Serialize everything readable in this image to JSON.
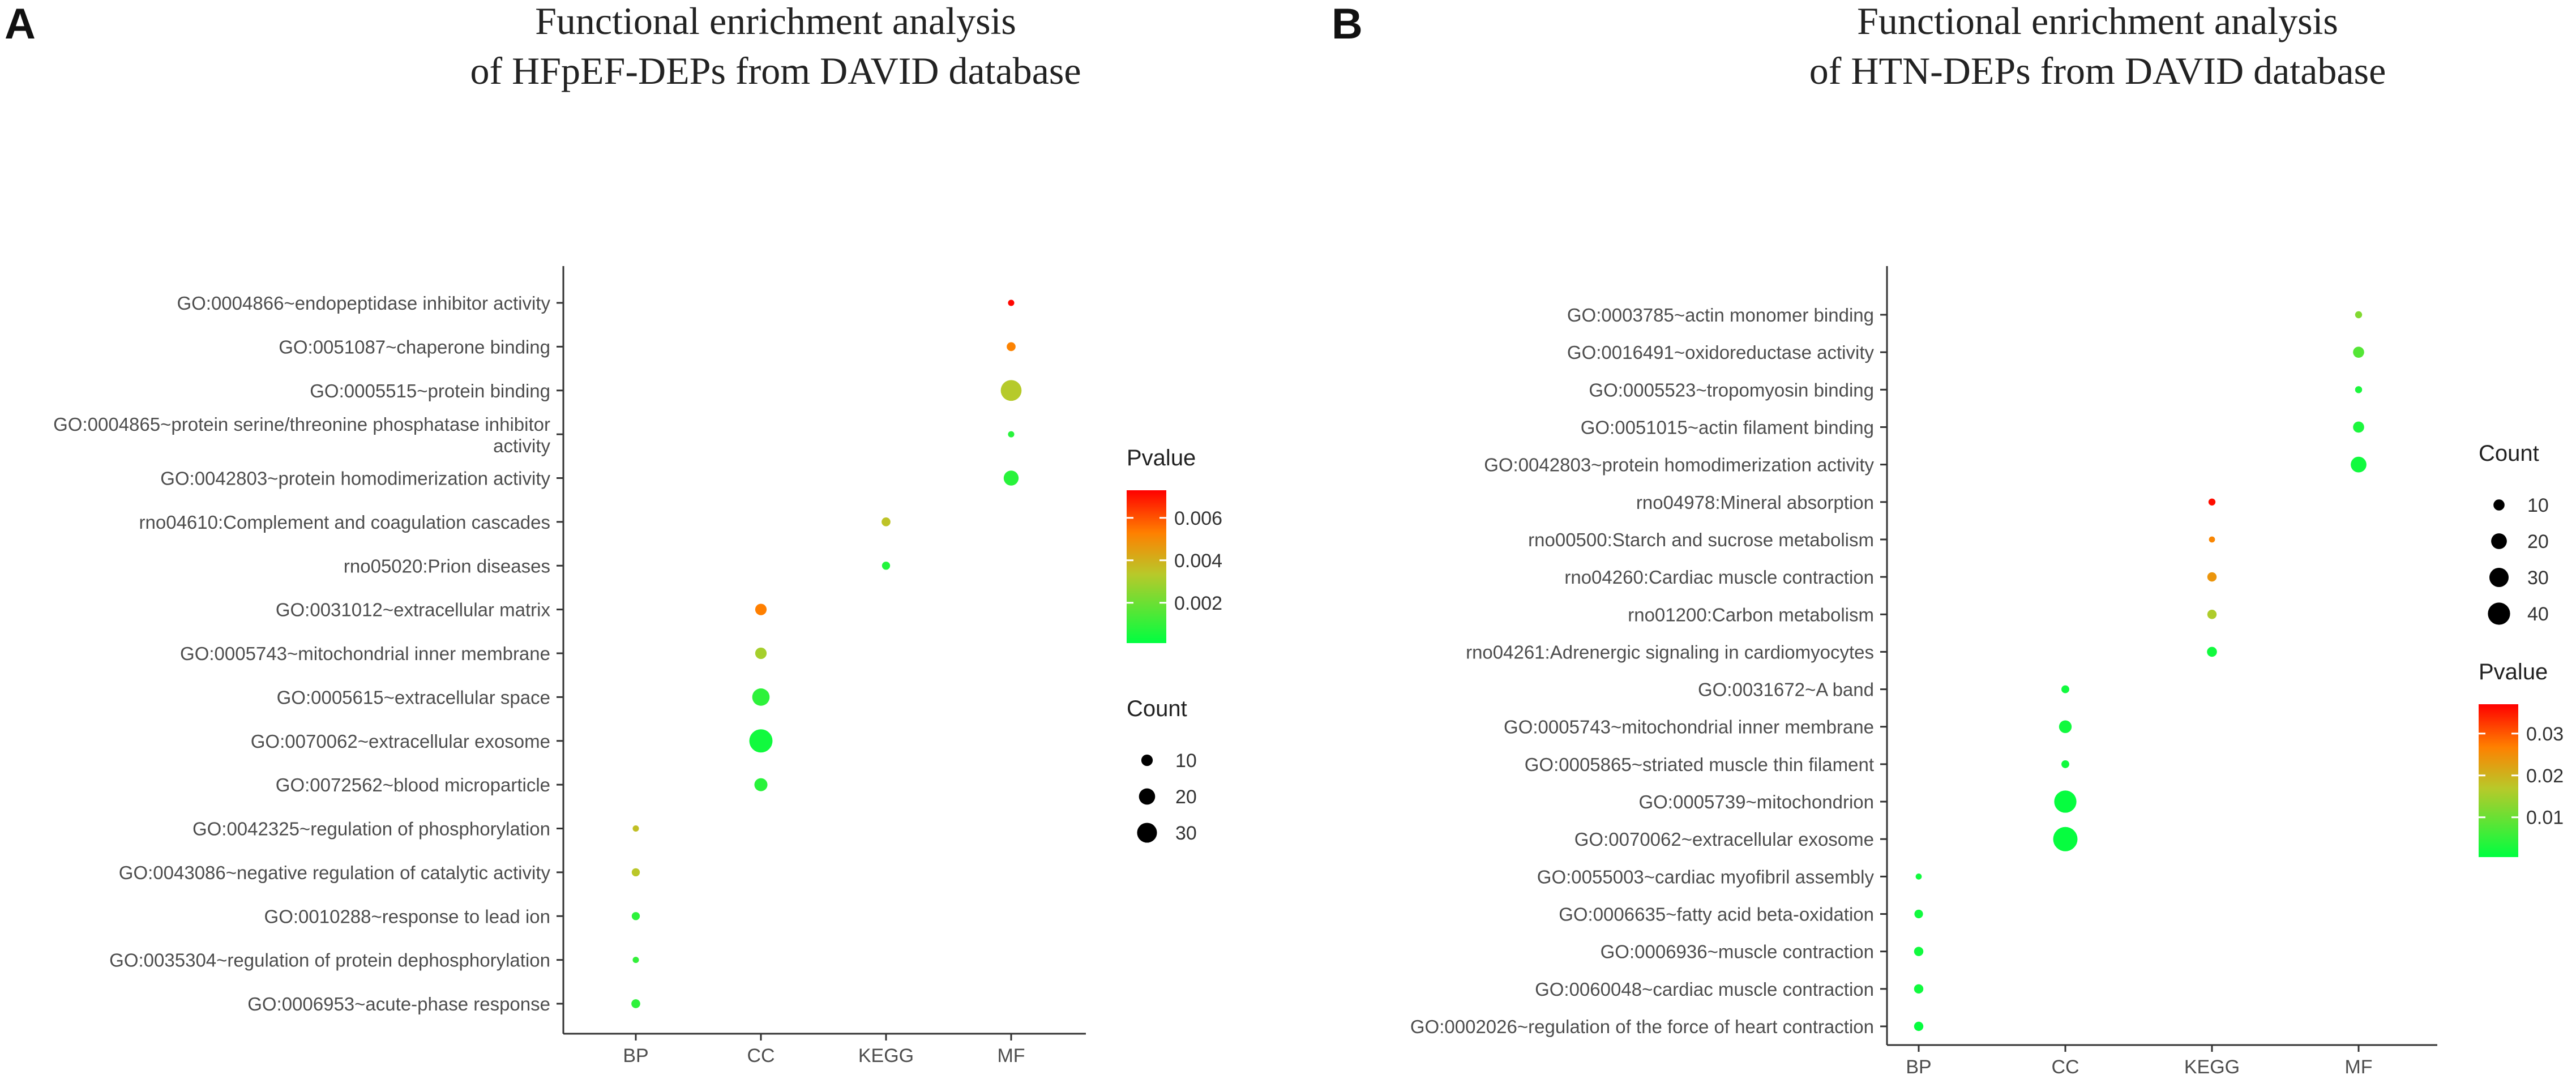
{
  "colors": {
    "low": "#00ff40",
    "mid": "#b8c92a",
    "midhigh": "#ff8000",
    "high": "#ff0000"
  },
  "chart_data": [
    {
      "type": "scatter",
      "panel_label": "A",
      "title": [
        "Functional enrichment analysis",
        "of HFpEF-DEPs from DAVID database"
      ],
      "categories": [
        "BP",
        "CC",
        "KEGG",
        "MF"
      ],
      "terms": [
        "GO:0004866~endopeptidase inhibitor activity",
        "GO:0051087~chaperone binding",
        "GO:0005515~protein binding",
        "GO:0004865~protein serine/threonine phosphatase inhibitor activity",
        "GO:0042803~protein homodimerization activity",
        "rno04610:Complement and coagulation cascades",
        "rno05020:Prion diseases",
        "GO:0031012~extracellular matrix",
        "GO:0005743~mitochondrial inner membrane",
        "GO:0005615~extracellular space",
        "GO:0070062~extracellular exosome",
        "GO:0072562~blood microparticle",
        "GO:0042325~regulation of phosphorylation",
        "GO:0043086~negative regulation of catalytic activity",
        "GO:0010288~response to lead ion",
        "GO:0035304~regulation of protein dephosphorylation",
        "GO:0006953~acute-phase response"
      ],
      "term_labels": [
        [
          "GO:0004866~endopeptidase inhibitor activity"
        ],
        [
          "GO:0051087~chaperone binding"
        ],
        [
          "GO:0005515~protein binding"
        ],
        [
          "GO:0004865~protein serine/threonine phosphatase inhibitor",
          "activity"
        ],
        [
          "GO:0042803~protein homodimerization activity"
        ],
        [
          "rno04610:Complement and coagulation cascades"
        ],
        [
          "rno05020:Prion diseases"
        ],
        [
          "GO:0031012~extracellular matrix"
        ],
        [
          "GO:0005743~mitochondrial inner membrane"
        ],
        [
          "GO:0005615~extracellular space"
        ],
        [
          "GO:0070062~extracellular exosome"
        ],
        [
          "GO:0072562~blood microparticle"
        ],
        [
          "GO:0042325~regulation of phosphorylation"
        ],
        [
          "GO:0043086~negative regulation of catalytic activity"
        ],
        [
          "GO:0010288~response to lead ion"
        ],
        [
          "GO:0035304~regulation of protein dephosphorylation"
        ],
        [
          "GO:0006953~acute-phase response"
        ]
      ],
      "points": [
        {
          "term": "GO:0004866~endopeptidase inhibitor activity",
          "category": "MF",
          "count": 3,
          "pvalue": 0.0072
        },
        {
          "term": "GO:0051087~chaperone binding",
          "category": "MF",
          "count": 6,
          "pvalue": 0.0052
        },
        {
          "term": "GO:0005515~protein binding",
          "category": "MF",
          "count": 33,
          "pvalue": 0.0033
        },
        {
          "term": "GO:0004865~protein serine/threonine phosphatase inhibitor activity",
          "category": "MF",
          "count": 3,
          "pvalue": 0.0008
        },
        {
          "term": "GO:0042803~protein homodimerization activity",
          "category": "MF",
          "count": 17,
          "pvalue": 0.0008
        },
        {
          "term": "rno04610:Complement and coagulation cascades",
          "category": "KEGG",
          "count": 6,
          "pvalue": 0.0035
        },
        {
          "term": "rno05020:Prion diseases",
          "category": "KEGG",
          "count": 5,
          "pvalue": 0.0007
        },
        {
          "term": "GO:0031012~extracellular matrix",
          "category": "CC",
          "count": 10,
          "pvalue": 0.0053
        },
        {
          "term": "GO:0005743~mitochondrial inner membrane",
          "category": "CC",
          "count": 10,
          "pvalue": 0.003
        },
        {
          "term": "GO:0005615~extracellular space",
          "category": "CC",
          "count": 23,
          "pvalue": 0.0009
        },
        {
          "term": "GO:0070062~extracellular exosome",
          "category": "CC",
          "count": 41,
          "pvalue": 0.0004
        },
        {
          "term": "GO:0072562~blood microparticle",
          "category": "CC",
          "count": 13,
          "pvalue": 0.0008
        },
        {
          "term": "GO:0042325~regulation of phosphorylation",
          "category": "BP",
          "count": 3,
          "pvalue": 0.0036
        },
        {
          "term": "GO:0043086~negative regulation of catalytic activity",
          "category": "BP",
          "count": 5,
          "pvalue": 0.0034
        },
        {
          "term": "GO:0010288~response to lead ion",
          "category": "BP",
          "count": 5,
          "pvalue": 0.0009
        },
        {
          "term": "GO:0035304~regulation of protein dephosphorylation",
          "category": "BP",
          "count": 3,
          "pvalue": 0.001
        },
        {
          "term": "GO:0006953~acute-phase response",
          "category": "BP",
          "count": 6,
          "pvalue": 0.0009
        }
      ],
      "pvalue_legend": {
        "title": "Pvalue",
        "range": [
          0.0001,
          0.0073
        ],
        "ticks": [
          0.002,
          0.004,
          0.006
        ],
        "tick_labels": [
          "0.002",
          "0.004",
          "0.006"
        ]
      },
      "count_legend": {
        "title": "Count",
        "values": [
          10,
          20,
          30
        ],
        "labels": [
          "10",
          "20",
          "30"
        ]
      },
      "legend_order": [
        "pvalue",
        "count"
      ]
    },
    {
      "type": "scatter",
      "panel_label": "B",
      "title": [
        "Functional enrichment analysis",
        "of HTN-DEPs from DAVID database"
      ],
      "categories": [
        "BP",
        "CC",
        "KEGG",
        "MF"
      ],
      "terms": [
        "GO:0003785~actin monomer binding",
        "GO:0016491~oxidoreductase activity",
        "GO:0005523~tropomyosin binding",
        "GO:0051015~actin filament binding",
        "GO:0042803~protein homodimerization activity",
        "rno04978:Mineral absorption",
        "rno00500:Starch and sucrose metabolism",
        "rno04260:Cardiac muscle contraction",
        "rno01200:Carbon metabolism",
        "rno04261:Adrenergic signaling in cardiomyocytes",
        "GO:0031672~A band",
        "GO:0005743~mitochondrial inner membrane",
        "GO:0005865~striated muscle thin filament",
        "GO:0005739~mitochondrion",
        "GO:0070062~extracellular exosome",
        "GO:0055003~cardiac myofibril assembly",
        "GO:0006635~fatty acid beta-oxidation",
        "GO:0006936~muscle contraction",
        "GO:0060048~cardiac muscle contraction",
        "GO:0002026~regulation of the force of heart contraction"
      ],
      "term_labels": [
        [
          "GO:0003785~actin monomer binding"
        ],
        [
          "GO:0016491~oxidoreductase activity"
        ],
        [
          "GO:0005523~tropomyosin binding"
        ],
        [
          "GO:0051015~actin filament binding"
        ],
        [
          "GO:0042803~protein homodimerization activity"
        ],
        [
          "rno04978:Mineral absorption"
        ],
        [
          "rno00500:Starch and sucrose metabolism"
        ],
        [
          "rno04260:Cardiac muscle contraction"
        ],
        [
          "rno01200:Carbon metabolism"
        ],
        [
          "rno04261:Adrenergic signaling in cardiomyocytes"
        ],
        [
          "GO:0031672~A band"
        ],
        [
          "GO:0005743~mitochondrial inner membrane"
        ],
        [
          "GO:0005865~striated muscle thin filament"
        ],
        [
          "GO:0005739~mitochondrion"
        ],
        [
          "GO:0070062~extracellular exosome"
        ],
        [
          "GO:0055003~cardiac myofibril assembly"
        ],
        [
          "GO:0006635~fatty acid beta-oxidation"
        ],
        [
          "GO:0006936~muscle contraction"
        ],
        [
          "GO:0060048~cardiac muscle contraction"
        ],
        [
          "GO:0002026~regulation of the force of heart contraction"
        ]
      ],
      "points": [
        {
          "term": "GO:0003785~actin monomer binding",
          "category": "MF",
          "count": 4,
          "pvalue": 0.012
        },
        {
          "term": "GO:0016491~oxidoreductase activity",
          "category": "MF",
          "count": 10,
          "pvalue": 0.008
        },
        {
          "term": "GO:0005523~tropomyosin binding",
          "category": "MF",
          "count": 4,
          "pvalue": 0.003
        },
        {
          "term": "GO:0051015~actin filament binding",
          "category": "MF",
          "count": 10,
          "pvalue": 0.003
        },
        {
          "term": "GO:0042803~protein homodimerization activity",
          "category": "MF",
          "count": 20,
          "pvalue": 0.002
        },
        {
          "term": "rno04978:Mineral absorption",
          "category": "KEGG",
          "count": 4,
          "pvalue": 0.036
        },
        {
          "term": "rno00500:Starch and sucrose metabolism",
          "category": "KEGG",
          "count": 3,
          "pvalue": 0.026
        },
        {
          "term": "rno04260:Cardiac muscle contraction",
          "category": "KEGG",
          "count": 7,
          "pvalue": 0.024
        },
        {
          "term": "rno01200:Carbon metabolism",
          "category": "KEGG",
          "count": 7,
          "pvalue": 0.016
        },
        {
          "term": "rno04261:Adrenergic signaling in cardiomyocytes",
          "category": "KEGG",
          "count": 8,
          "pvalue": 0.002
        },
        {
          "term": "GO:0031672~A band",
          "category": "CC",
          "count": 5,
          "pvalue": 0.002
        },
        {
          "term": "GO:0005743~mitochondrial inner membrane",
          "category": "CC",
          "count": 13,
          "pvalue": 0.002
        },
        {
          "term": "GO:0005865~striated muscle thin filament",
          "category": "CC",
          "count": 5,
          "pvalue": 0.002
        },
        {
          "term": "GO:0005739~mitochondrion",
          "category": "CC",
          "count": 40,
          "pvalue": 0.001
        },
        {
          "term": "GO:0070062~extracellular exosome",
          "category": "CC",
          "count": 48,
          "pvalue": 0.001
        },
        {
          "term": "GO:0055003~cardiac myofibril assembly",
          "category": "BP",
          "count": 3,
          "pvalue": 0.002
        },
        {
          "term": "GO:0006635~fatty acid beta-oxidation",
          "category": "BP",
          "count": 6,
          "pvalue": 0.002
        },
        {
          "term": "GO:0006936~muscle contraction",
          "category": "BP",
          "count": 7,
          "pvalue": 0.002
        },
        {
          "term": "GO:0060048~cardiac muscle contraction",
          "category": "BP",
          "count": 7,
          "pvalue": 0.002
        },
        {
          "term": "GO:0002026~regulation of the force of heart contraction",
          "category": "BP",
          "count": 7,
          "pvalue": 0.001
        }
      ],
      "pvalue_legend": {
        "title": "Pvalue",
        "range": [
          0.0005,
          0.037
        ],
        "ticks": [
          0.01,
          0.02,
          0.03
        ],
        "tick_labels": [
          "0.01",
          "0.02",
          "0.03"
        ]
      },
      "count_legend": {
        "title": "Count",
        "values": [
          10,
          20,
          30,
          40
        ],
        "labels": [
          "10",
          "20",
          "30",
          "40"
        ]
      },
      "legend_order": [
        "count",
        "pvalue"
      ]
    }
  ]
}
